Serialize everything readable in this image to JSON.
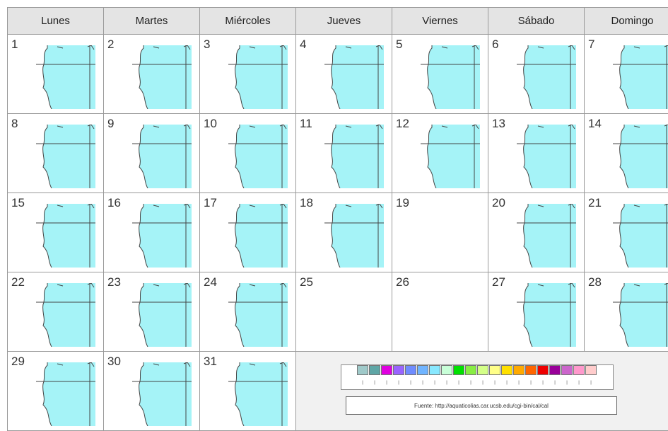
{
  "headers": [
    "Lunes",
    "Martes",
    "Miércoles",
    "Jueves",
    "Viernes",
    "Sábado",
    "Domingo"
  ],
  "weeks": [
    [
      {
        "day": "1",
        "map": true
      },
      {
        "day": "2",
        "map": true
      },
      {
        "day": "3",
        "map": true
      },
      {
        "day": "4",
        "map": true
      },
      {
        "day": "5",
        "map": true
      },
      {
        "day": "6",
        "map": true
      },
      {
        "day": "7",
        "map": true
      }
    ],
    [
      {
        "day": "8",
        "map": true
      },
      {
        "day": "9",
        "map": true
      },
      {
        "day": "10",
        "map": true
      },
      {
        "day": "11",
        "map": true
      },
      {
        "day": "12",
        "map": true
      },
      {
        "day": "13",
        "map": true
      },
      {
        "day": "14",
        "map": true
      }
    ],
    [
      {
        "day": "15",
        "map": true
      },
      {
        "day": "16",
        "map": true
      },
      {
        "day": "17",
        "map": true
      },
      {
        "day": "18",
        "map": true
      },
      {
        "day": "19",
        "map": false
      },
      {
        "day": "20",
        "map": true
      },
      {
        "day": "21",
        "map": true
      }
    ],
    [
      {
        "day": "22",
        "map": true
      },
      {
        "day": "23",
        "map": true
      },
      {
        "day": "24",
        "map": true
      },
      {
        "day": "25",
        "map": false
      },
      {
        "day": "26",
        "map": false
      },
      {
        "day": "27",
        "map": true
      },
      {
        "day": "28",
        "map": true
      }
    ],
    [
      {
        "day": "29",
        "map": true
      },
      {
        "day": "30",
        "map": true
      },
      {
        "day": "31",
        "map": true
      }
    ]
  ],
  "legend": {
    "colors": [
      "#9fc9c9",
      "#5fa6a6",
      "#e000e0",
      "#9a64ff",
      "#6f8cff",
      "#70b4ff",
      "#88e8ff",
      "#c8ffd8",
      "#00e000",
      "#88ee44",
      "#d4ff88",
      "#ffff88",
      "#ffe000",
      "#ffaa00",
      "#ff6600",
      "#ee0000",
      "#990099",
      "#cc66cc",
      "#ff99cc",
      "#ffcccc"
    ]
  },
  "source_text": "Fuente: http://aquaticolias.car.ucsb.edu/cgi-bin/cal/cal"
}
